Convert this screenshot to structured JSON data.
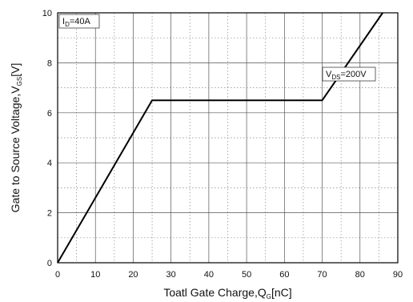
{
  "chart_data": {
    "type": "line",
    "title": "",
    "xlabel": {
      "main": "Toatl Gate Charge,Q",
      "sub": "G",
      "unit": "[nC]"
    },
    "ylabel": {
      "main": "Gate to Source Voltage,V",
      "sub": "GS",
      "unit": "[V]"
    },
    "xlim": [
      0,
      90
    ],
    "ylim": [
      0,
      10
    ],
    "x_ticks": [
      0,
      10,
      20,
      30,
      40,
      50,
      60,
      70,
      80,
      90
    ],
    "y_ticks": [
      0,
      2,
      4,
      6,
      8,
      10
    ],
    "grid": true,
    "series": [
      {
        "x": [
          0,
          25,
          70,
          86
        ],
        "y": [
          0,
          6.5,
          6.5,
          10
        ],
        "color": "#000000"
      }
    ],
    "annotations": [
      {
        "main": "I",
        "sub": "D",
        "rest": "=40A",
        "placement": "top-left"
      },
      {
        "main": "V",
        "sub": "DS",
        "rest": "=200V",
        "x": 72,
        "y": 7.5
      }
    ]
  }
}
